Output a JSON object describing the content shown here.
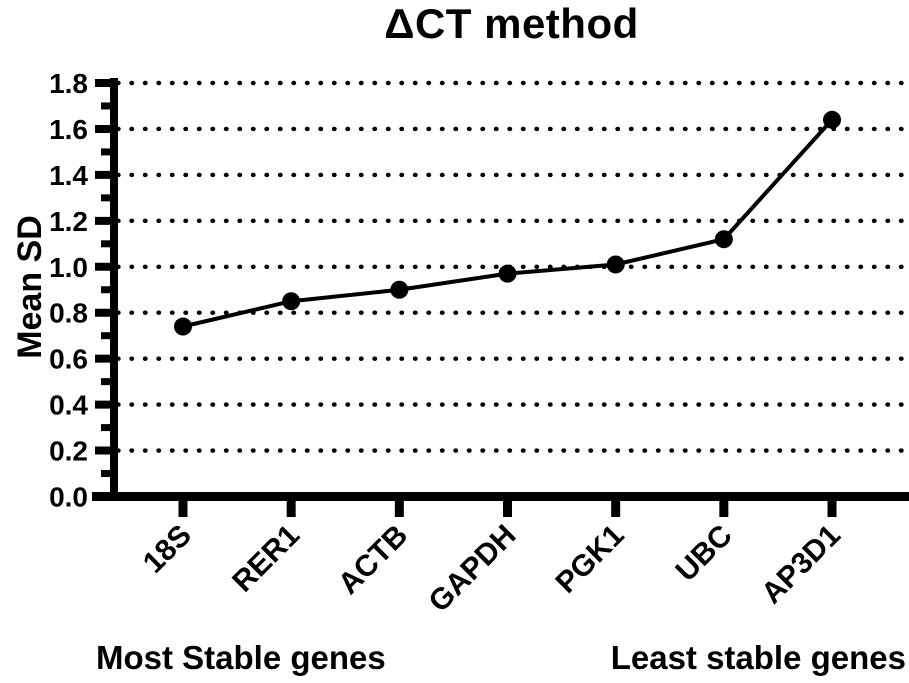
{
  "chart_data": {
    "type": "line",
    "title": "ΔCT method",
    "xlabel": "",
    "ylabel": "Mean SD",
    "categories": [
      "18S",
      "RER1",
      "ACTB",
      "GAPDH",
      "PGK1",
      "UBC",
      "AP3D1"
    ],
    "values": [
      0.74,
      0.85,
      0.9,
      0.97,
      1.01,
      1.12,
      1.64
    ],
    "ylim": [
      0,
      1.8
    ],
    "y_major_step": 0.2,
    "y_minor_step": 0.1,
    "y_tick_label_format_decimals": 1,
    "grid": "dotted-horizontal-at-major-ticks",
    "legend": "none",
    "marker": "filled-circle",
    "line_color": "#000000",
    "marker_color": "#000000",
    "grid_color": "#000000",
    "axis_color": "#000000",
    "background_color": "#ffffff",
    "group_labels": {
      "left": "Most Stable genes",
      "right": "Least stable genes"
    }
  }
}
